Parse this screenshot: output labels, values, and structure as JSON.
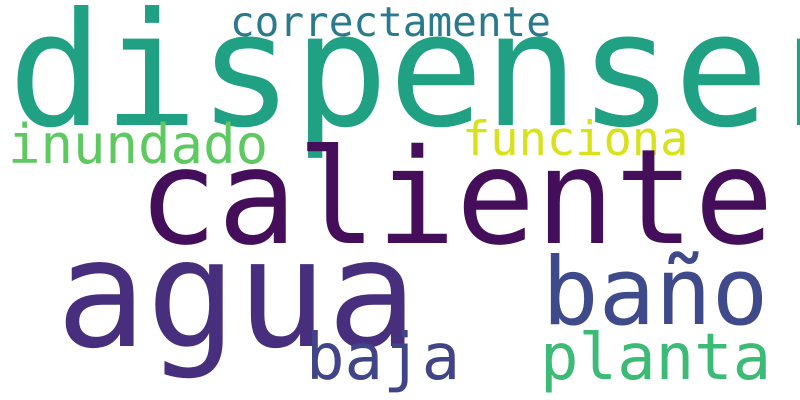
{
  "words": [
    {
      "key": "dispenser",
      "text": "dispenser",
      "color": "#21a184"
    },
    {
      "key": "correctamente",
      "text": "correctamente",
      "color": "#2a7a8e"
    },
    {
      "key": "inundado",
      "text": "inundado",
      "color": "#5ec861"
    },
    {
      "key": "funciona",
      "text": "funciona",
      "color": "#d8e219"
    },
    {
      "key": "caliente",
      "text": "caliente",
      "color": "#440e5a"
    },
    {
      "key": "agua",
      "text": "agua",
      "color": "#472f7d"
    },
    {
      "key": "bano",
      "text": "baño",
      "color": "#3f4a8a"
    },
    {
      "key": "baja",
      "text": "baja",
      "color": "#414487"
    },
    {
      "key": "planta",
      "text": "planta",
      "color": "#3bbb75"
    }
  ]
}
